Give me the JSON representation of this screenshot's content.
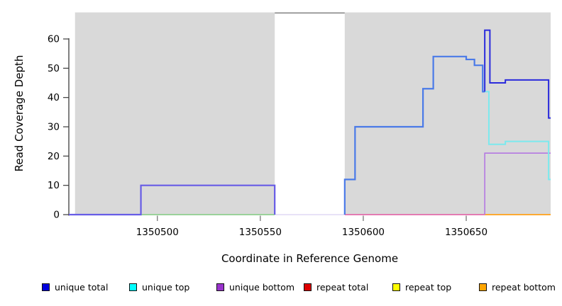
{
  "axes": {
    "x_label": "Coordinate in Reference Genome",
    "y_label": "Read Coverage Depth"
  },
  "legend": {
    "items": [
      {
        "label": "unique total",
        "color": "#0000dd"
      },
      {
        "label": "unique top",
        "color": "#00ffff"
      },
      {
        "label": "unique bottom",
        "color": "#9933cc"
      },
      {
        "label": "repeat total",
        "color": "#dd0000"
      },
      {
        "label": "repeat top",
        "color": "#ffff00"
      },
      {
        "label": "repeat bottom",
        "color": "#ffa500"
      }
    ]
  },
  "chart_data": {
    "type": "line",
    "subtype": "step-coverage",
    "xlabel": "Coordinate in Reference Genome",
    "ylabel": "Read Coverage Depth",
    "xlim": [
      1350457,
      1350691
    ],
    "ylim": [
      0,
      69.2
    ],
    "x_ticks": [
      1350500,
      1350550,
      1350600,
      1350650
    ],
    "y_ticks": [
      0,
      10,
      20,
      30,
      40,
      50,
      60
    ],
    "grid": false,
    "legend_position": "bottom",
    "plot_background": "#d9d9d9",
    "data_region_start": 1350460,
    "masked_region": [
      1350557,
      1350591
    ],
    "series": [
      {
        "name": "unique total",
        "steps": [
          [
            1350457,
            0
          ],
          [
            1350492,
            10
          ],
          [
            1350557,
            0
          ],
          [
            1350591,
            12
          ],
          [
            1350596,
            30
          ],
          [
            1350629,
            43
          ],
          [
            1350634,
            54
          ],
          [
            1350650,
            53
          ],
          [
            1350654,
            51
          ],
          [
            1350658,
            42
          ],
          [
            1350659,
            63
          ],
          [
            1350661,
            45
          ],
          [
            1350669,
            46
          ],
          [
            1350690,
            33
          ],
          [
            1350691,
            33
          ]
        ]
      },
      {
        "name": "unique top",
        "steps": [
          [
            1350457,
            0
          ],
          [
            1350591,
            12
          ],
          [
            1350596,
            30
          ],
          [
            1350629,
            43
          ],
          [
            1350634,
            54
          ],
          [
            1350650,
            53
          ],
          [
            1350654,
            51
          ],
          [
            1350658,
            42
          ],
          [
            1350661,
            24
          ],
          [
            1350669,
            25
          ],
          [
            1350690,
            12
          ],
          [
            1350691,
            12
          ]
        ]
      },
      {
        "name": "unique bottom",
        "steps": [
          [
            1350457,
            0
          ],
          [
            1350492,
            10
          ],
          [
            1350557,
            0
          ],
          [
            1350659,
            21
          ],
          [
            1350691,
            21
          ]
        ]
      },
      {
        "name": "repeat total",
        "steps": [
          [
            1350457,
            0
          ],
          [
            1350691,
            0
          ]
        ]
      },
      {
        "name": "repeat top",
        "steps": [
          [
            1350457,
            0
          ],
          [
            1350691,
            0
          ]
        ]
      },
      {
        "name": "repeat bottom",
        "steps": [
          [
            1350457,
            0
          ],
          [
            1350691,
            0
          ]
        ]
      }
    ],
    "render_layers": [
      {
        "name": "zero-line-green",
        "color": "#8fce8f",
        "width": 1.8,
        "points": [
          [
            1350492,
            0
          ],
          [
            1350557,
            0
          ]
        ]
      },
      {
        "name": "zero-line-lavender",
        "color": "#d9d0f2",
        "width": 1.3,
        "points": [
          [
            1350557,
            0
          ],
          [
            1350591,
            0
          ]
        ]
      },
      {
        "name": "zero-line-pink",
        "color": "#e0569f",
        "width": 1.6,
        "points": [
          [
            1350591,
            0
          ],
          [
            1350659,
            0
          ]
        ]
      },
      {
        "name": "zero-line-orange",
        "color": "#ffa018",
        "width": 1.8,
        "points": [
          [
            1350659,
            0
          ],
          [
            1350691,
            0
          ]
        ]
      },
      {
        "name": "unique-step-left-slate",
        "color": "#675ce6",
        "width": 2.2,
        "points": [
          [
            1350457,
            0
          ],
          [
            1350492,
            0
          ],
          [
            1350492,
            10
          ],
          [
            1350557,
            10
          ],
          [
            1350557,
            0
          ]
        ]
      },
      {
        "name": "unique-bottom-purple",
        "color": "#b478e2",
        "width": 1.6,
        "points": [
          [
            1350659,
            0
          ],
          [
            1350659,
            21
          ],
          [
            1350691,
            21
          ]
        ]
      },
      {
        "name": "total-top-blend-blue",
        "color": "#4a7ae8",
        "width": 2.2,
        "points": [
          [
            1350591,
            0
          ],
          [
            1350591,
            12
          ],
          [
            1350596,
            12
          ],
          [
            1350596,
            30
          ],
          [
            1350629,
            30
          ],
          [
            1350629,
            43
          ],
          [
            1350634,
            43
          ],
          [
            1350634,
            54
          ],
          [
            1350650,
            54
          ],
          [
            1350650,
            53
          ],
          [
            1350654,
            53
          ],
          [
            1350654,
            51
          ],
          [
            1350658,
            51
          ],
          [
            1350658,
            42
          ],
          [
            1350659,
            42
          ]
        ]
      },
      {
        "name": "unique-top-cyan",
        "color": "#7ce9ee",
        "width": 2,
        "points": [
          [
            1350659,
            42
          ],
          [
            1350661,
            42
          ],
          [
            1350661,
            24
          ],
          [
            1350669,
            24
          ],
          [
            1350669,
            25
          ],
          [
            1350690,
            25
          ],
          [
            1350690,
            12
          ],
          [
            1350691,
            12
          ]
        ]
      },
      {
        "name": "unique-total-dark-blue",
        "color": "#2b2bdc",
        "width": 2,
        "points": [
          [
            1350659,
            42
          ],
          [
            1350659,
            63
          ],
          [
            1350661.5,
            63
          ],
          [
            1350661.5,
            45
          ],
          [
            1350669,
            45
          ],
          [
            1350669,
            46
          ],
          [
            1350690,
            46
          ],
          [
            1350690,
            33
          ],
          [
            1350691,
            33
          ]
        ]
      }
    ]
  }
}
